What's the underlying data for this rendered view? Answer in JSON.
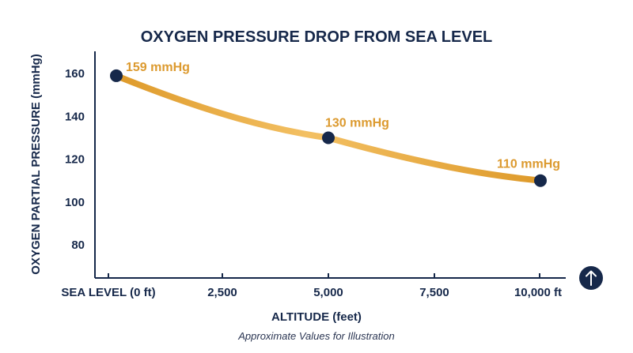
{
  "chart_data": {
    "type": "line",
    "title": "OXYGEN PRESSURE DROP FROM SEA LEVEL",
    "xlabel": "ALTITUDE (feet)",
    "ylabel": "OXYGEN PARTIAL PRESSURE (mmHg)",
    "x_ticks": [
      {
        "value": 0,
        "label": "SEA LEVEL (0 ft)"
      },
      {
        "value": 2500,
        "label": "2,500"
      },
      {
        "value": 5000,
        "label": "5,000"
      },
      {
        "value": 7500,
        "label": "7,500"
      },
      {
        "value": 10000,
        "label": "10,000 ft"
      }
    ],
    "y_ticks": [
      80,
      100,
      120,
      140,
      160
    ],
    "xlim": [
      0,
      10000
    ],
    "ylim": [
      70,
      170
    ],
    "grid": false,
    "series": [
      {
        "x": [
          0,
          5000,
          10000
        ],
        "values": [
          159,
          130,
          110
        ],
        "labels": [
          "159 mmHg",
          "130 mmHg",
          "110 mmHg"
        ]
      }
    ],
    "footnote": "Approximate Values for Illustration"
  },
  "colors": {
    "axis": "#16284a",
    "marker": "#16284a",
    "line_light": "#f3c063",
    "line_dark": "#de9a2a",
    "label": "#dc9a2f"
  },
  "controls": {
    "scroll_top_icon": "arrow-up-icon"
  }
}
